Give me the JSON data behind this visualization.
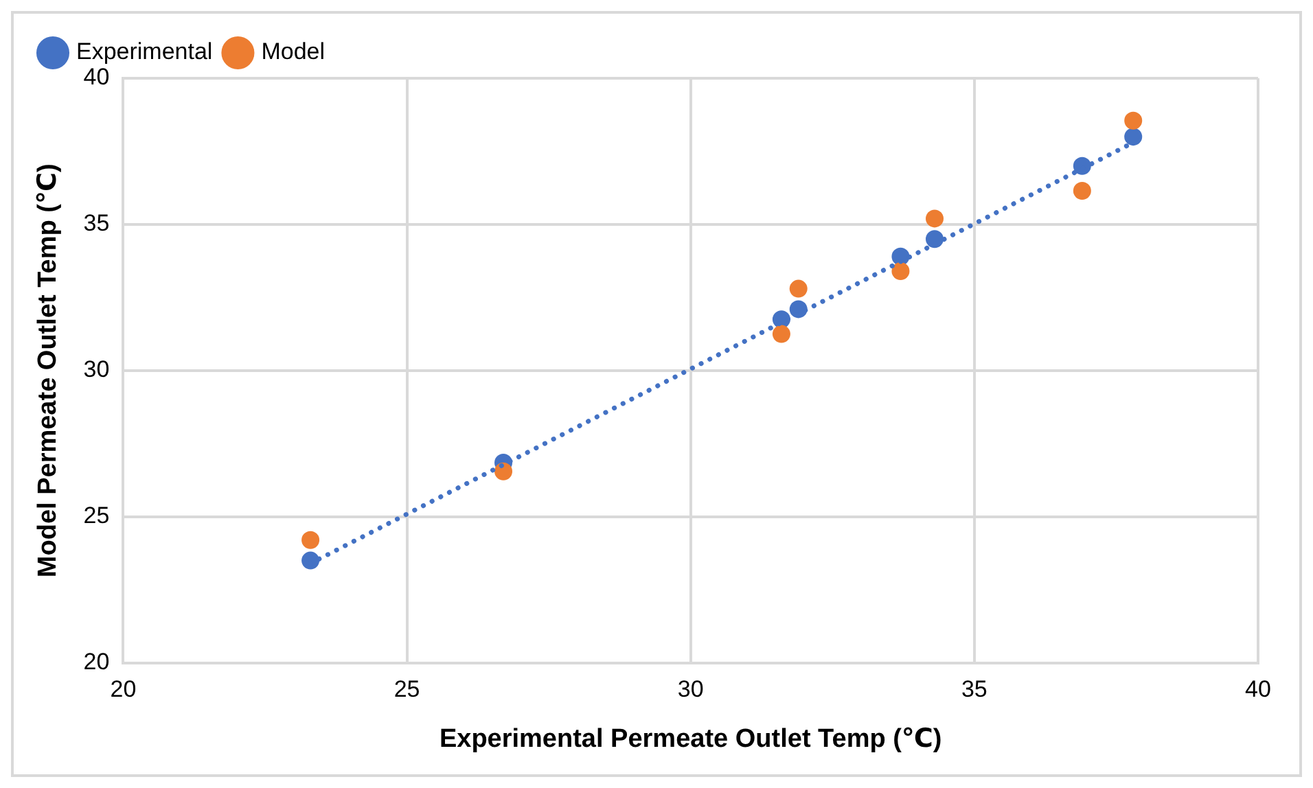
{
  "chart_data": {
    "type": "scatter",
    "xlabel": "Experimental Permeate Outlet Temp (℃)",
    "ylabel": "Model Permeate Outlet Temp (℃)",
    "xlim": [
      20,
      40
    ],
    "xticks": [
      20,
      25,
      30,
      35,
      40
    ],
    "ylim": [
      20,
      40
    ],
    "yticks": [
      20,
      25,
      30,
      35,
      40
    ],
    "grid": true,
    "legend": "top left",
    "marker": "circle",
    "series": [
      {
        "name": "Experimental",
        "color": "#4472c4",
        "x": [
          23.3,
          26.7,
          31.6,
          31.9,
          33.7,
          34.3,
          36.9,
          37.8
        ],
        "values": [
          23.5,
          26.85,
          31.75,
          32.1,
          33.9,
          34.5,
          37.0,
          38.0
        ]
      },
      {
        "name": "Model",
        "color": "#ed7d31",
        "x": [
          23.3,
          26.7,
          31.6,
          31.9,
          33.7,
          34.3,
          36.9,
          37.8
        ],
        "values": [
          24.2,
          26.55,
          31.25,
          32.8,
          33.4,
          35.2,
          36.15,
          38.55
        ]
      },
      {
        "type": "line",
        "color": "#4472c4",
        "line_style": "dotted",
        "marker": "none",
        "x": [
          23.3,
          37.8
        ],
        "values": [
          23.4,
          37.8
        ]
      }
    ]
  }
}
